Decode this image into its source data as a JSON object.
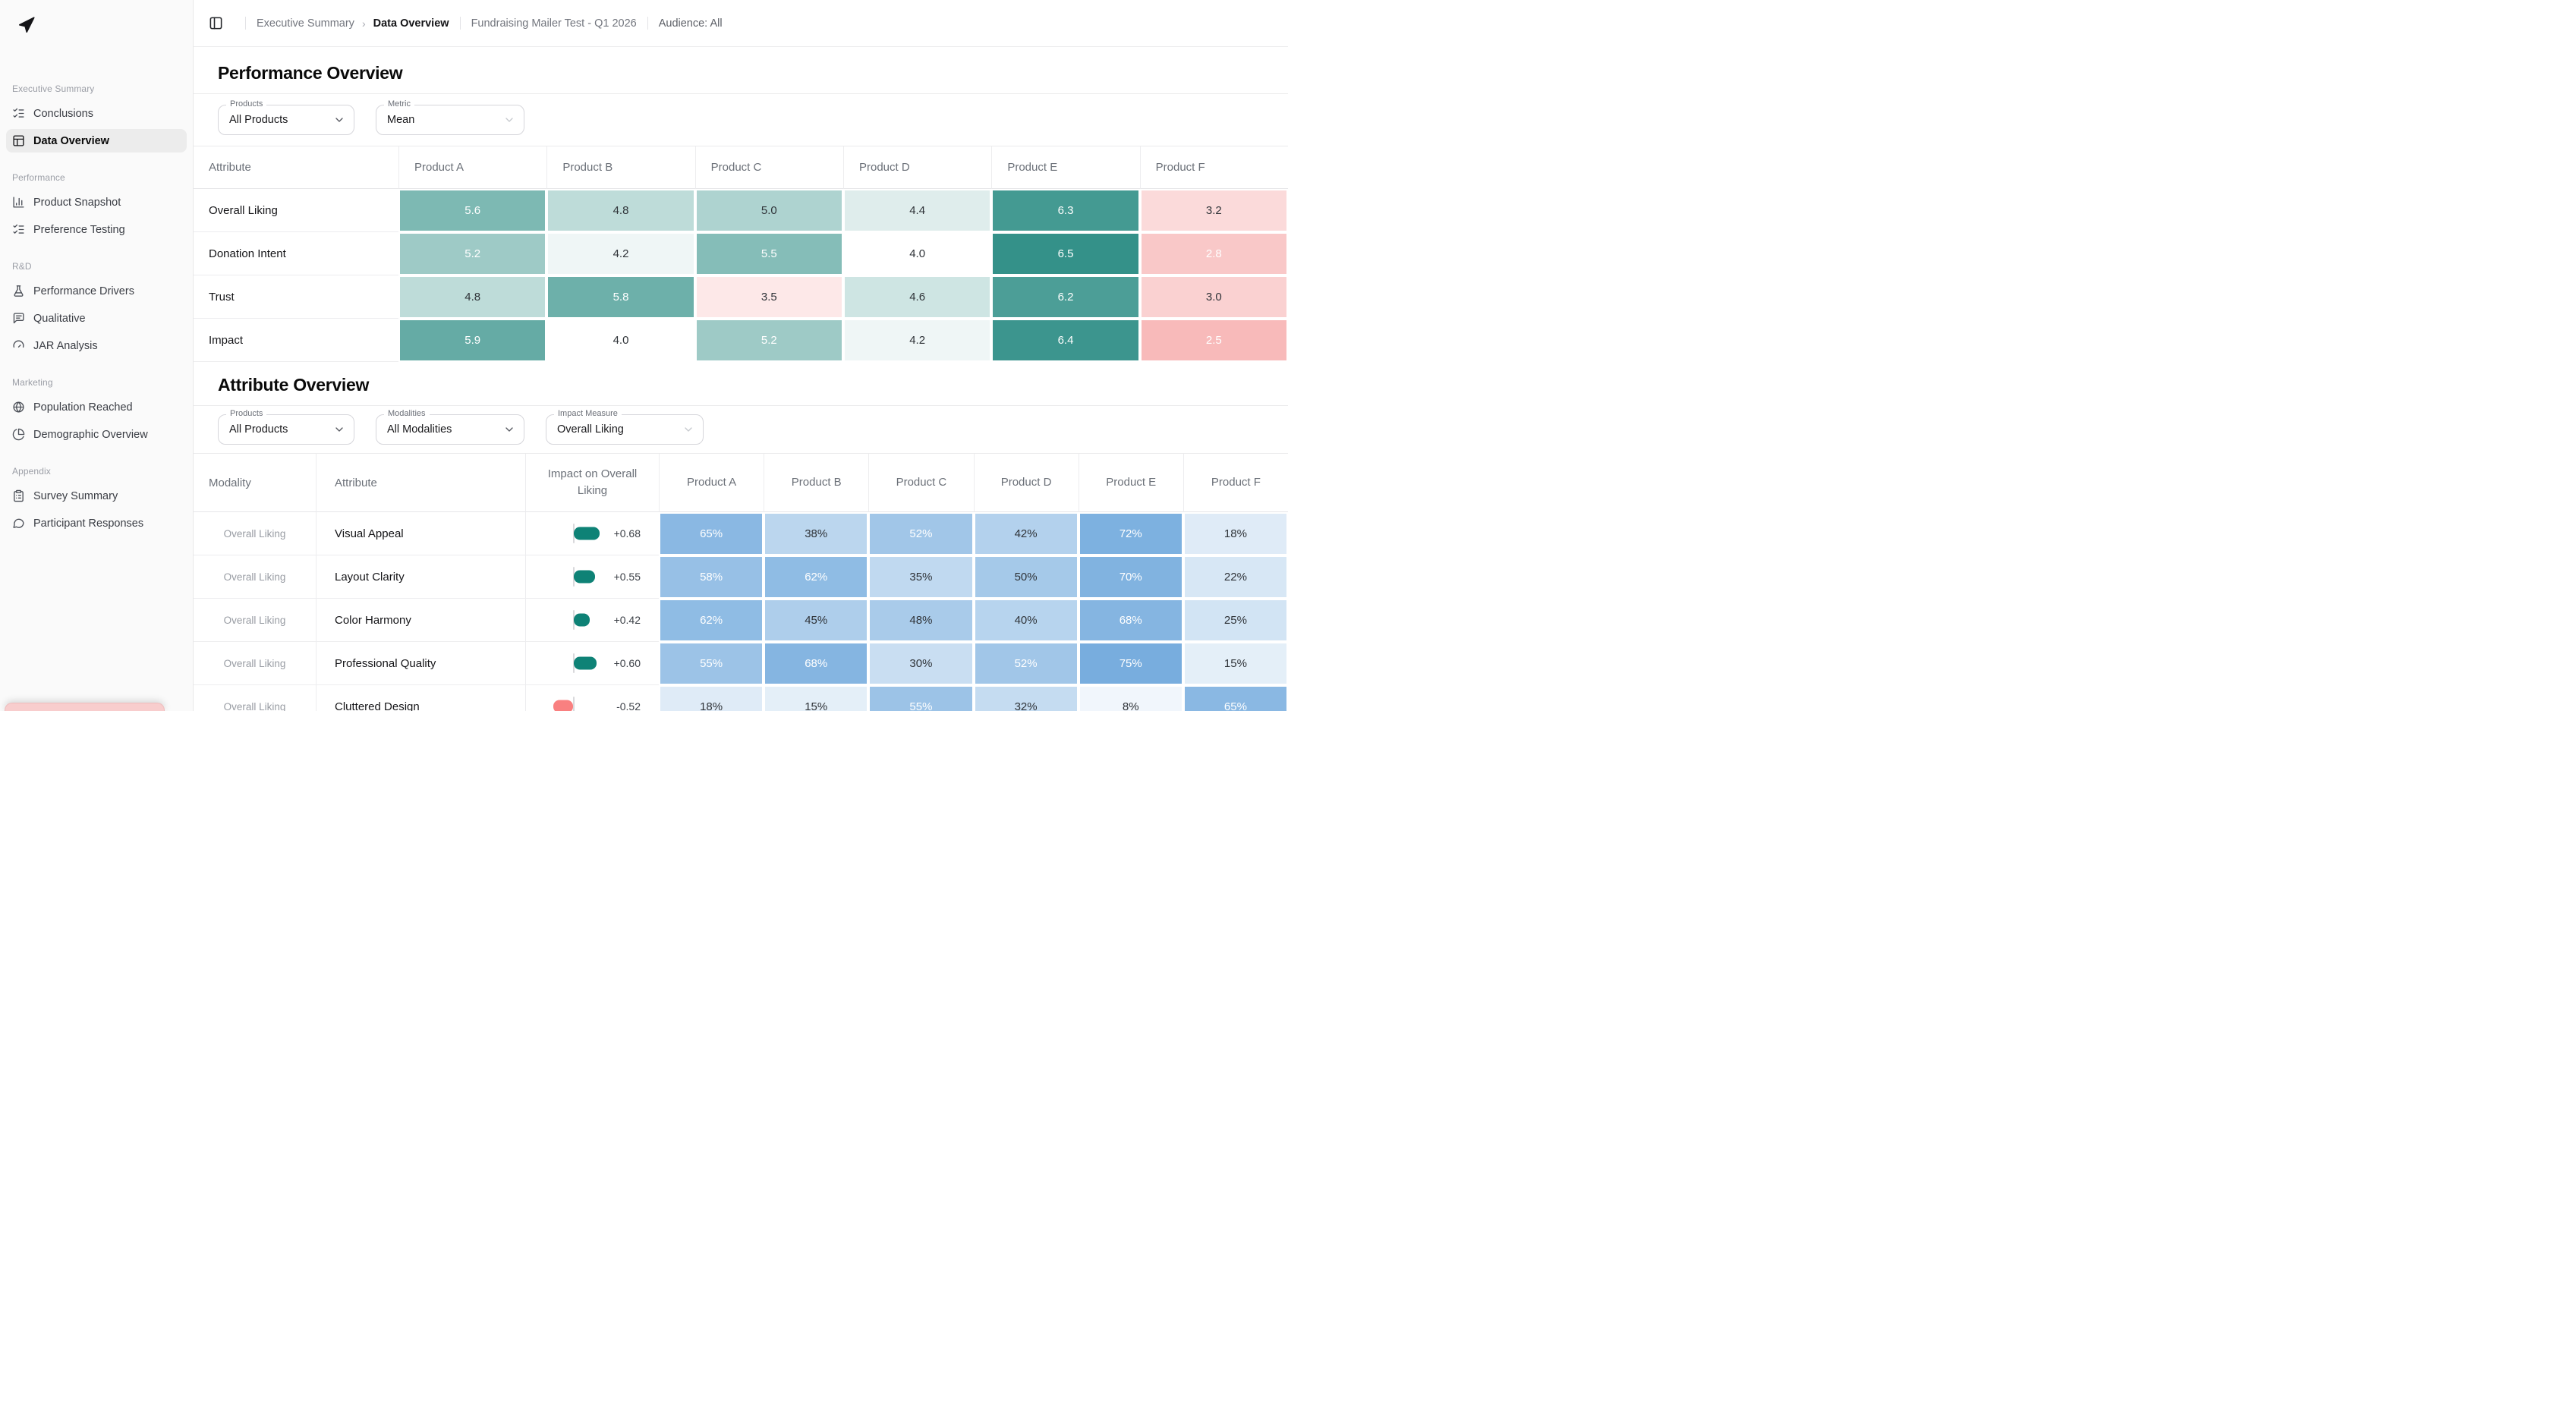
{
  "header": {
    "crumb_parent": "Executive Summary",
    "crumb_current": "Data Overview",
    "project": "Fundraising Mailer Test - Q1 2026",
    "audience": "Audience: All"
  },
  "icons": {
    "logo": "navigation-arrow",
    "header_toggle": "panel-left",
    "select_chevron": "chevron-down"
  },
  "sidebar": {
    "sections": [
      {
        "label": "Executive Summary",
        "items": [
          {
            "icon": "list-checks",
            "label": "Conclusions",
            "active": false
          },
          {
            "icon": "table",
            "label": "Data Overview",
            "active": true
          }
        ]
      },
      {
        "label": "Performance",
        "items": [
          {
            "icon": "bar-chart",
            "label": "Product Snapshot",
            "active": false
          },
          {
            "icon": "list-checks",
            "label": "Preference Testing",
            "active": false
          }
        ]
      },
      {
        "label": "R&D",
        "items": [
          {
            "icon": "flask",
            "label": "Performance Drivers",
            "active": false
          },
          {
            "icon": "message-text",
            "label": "Qualitative",
            "active": false
          },
          {
            "icon": "gauge",
            "label": "JAR Analysis",
            "active": false
          }
        ]
      },
      {
        "label": "Marketing",
        "items": [
          {
            "icon": "globe",
            "label": "Population Reached",
            "active": false
          },
          {
            "icon": "pie-chart",
            "label": "Demographic Overview",
            "active": false
          }
        ]
      },
      {
        "label": "Appendix",
        "items": [
          {
            "icon": "clipboard-list",
            "label": "Survey Summary",
            "active": false
          },
          {
            "icon": "message-circle",
            "label": "Participant Responses",
            "active": false
          }
        ]
      }
    ]
  },
  "performance_overview": {
    "title": "Performance Overview",
    "filters": [
      {
        "label": "Products",
        "value": "All Products",
        "muted": false
      },
      {
        "label": "Metric",
        "value": "Mean",
        "muted": true
      }
    ],
    "table": {
      "columns": [
        "Attribute",
        "Product A",
        "Product B",
        "Product C",
        "Product D",
        "Product E",
        "Product F"
      ],
      "rows": [
        {
          "attribute": "Overall Liking",
          "values": [
            5.6,
            4.8,
            5.0,
            4.4,
            6.3,
            3.2
          ]
        },
        {
          "attribute": "Donation Intent",
          "values": [
            5.2,
            4.2,
            5.5,
            4.0,
            6.5,
            2.8
          ]
        },
        {
          "attribute": "Trust",
          "values": [
            4.8,
            5.8,
            3.5,
            4.6,
            6.2,
            3.0
          ]
        },
        {
          "attribute": "Impact",
          "values": [
            5.9,
            4.0,
            5.2,
            4.2,
            6.4,
            2.5
          ]
        }
      ]
    }
  },
  "attribute_overview": {
    "title": "Attribute Overview",
    "filters": [
      {
        "label": "Products",
        "value": "All Products",
        "muted": false
      },
      {
        "label": "Modalities",
        "value": "All Modalities",
        "muted": false
      },
      {
        "label": "Impact Measure",
        "value": "Overall Liking",
        "muted": true
      }
    ],
    "table": {
      "columns": [
        "Modality",
        "Attribute",
        "Impact on Overall Liking",
        "Product A",
        "Product B",
        "Product C",
        "Product D",
        "Product E",
        "Product F"
      ],
      "rows": [
        {
          "modality": "Overall Liking",
          "attribute": "Visual Appeal",
          "impact": 0.68,
          "values": [
            65,
            38,
            52,
            42,
            72,
            18
          ]
        },
        {
          "modality": "Overall Liking",
          "attribute": "Layout Clarity",
          "impact": 0.55,
          "values": [
            58,
            62,
            35,
            50,
            70,
            22
          ]
        },
        {
          "modality": "Overall Liking",
          "attribute": "Color Harmony",
          "impact": 0.42,
          "values": [
            62,
            45,
            48,
            40,
            68,
            25
          ]
        },
        {
          "modality": "Overall Liking",
          "attribute": "Professional Quality",
          "impact": 0.6,
          "values": [
            55,
            68,
            30,
            52,
            75,
            15
          ]
        },
        {
          "modality": "Overall Liking",
          "attribute": "Cluttered Design",
          "impact": -0.52,
          "values": [
            18,
            15,
            55,
            32,
            8,
            65
          ]
        }
      ]
    }
  },
  "colors": {
    "teal_strong": "#349189",
    "pink_strong": "#f8baba",
    "blue_strong": "#6fa8dc",
    "pill_positive": "#0e8276",
    "pill_negative": "#f98080",
    "active_item_bg": "#ececec",
    "toast_pink": "#f8cdcd"
  }
}
